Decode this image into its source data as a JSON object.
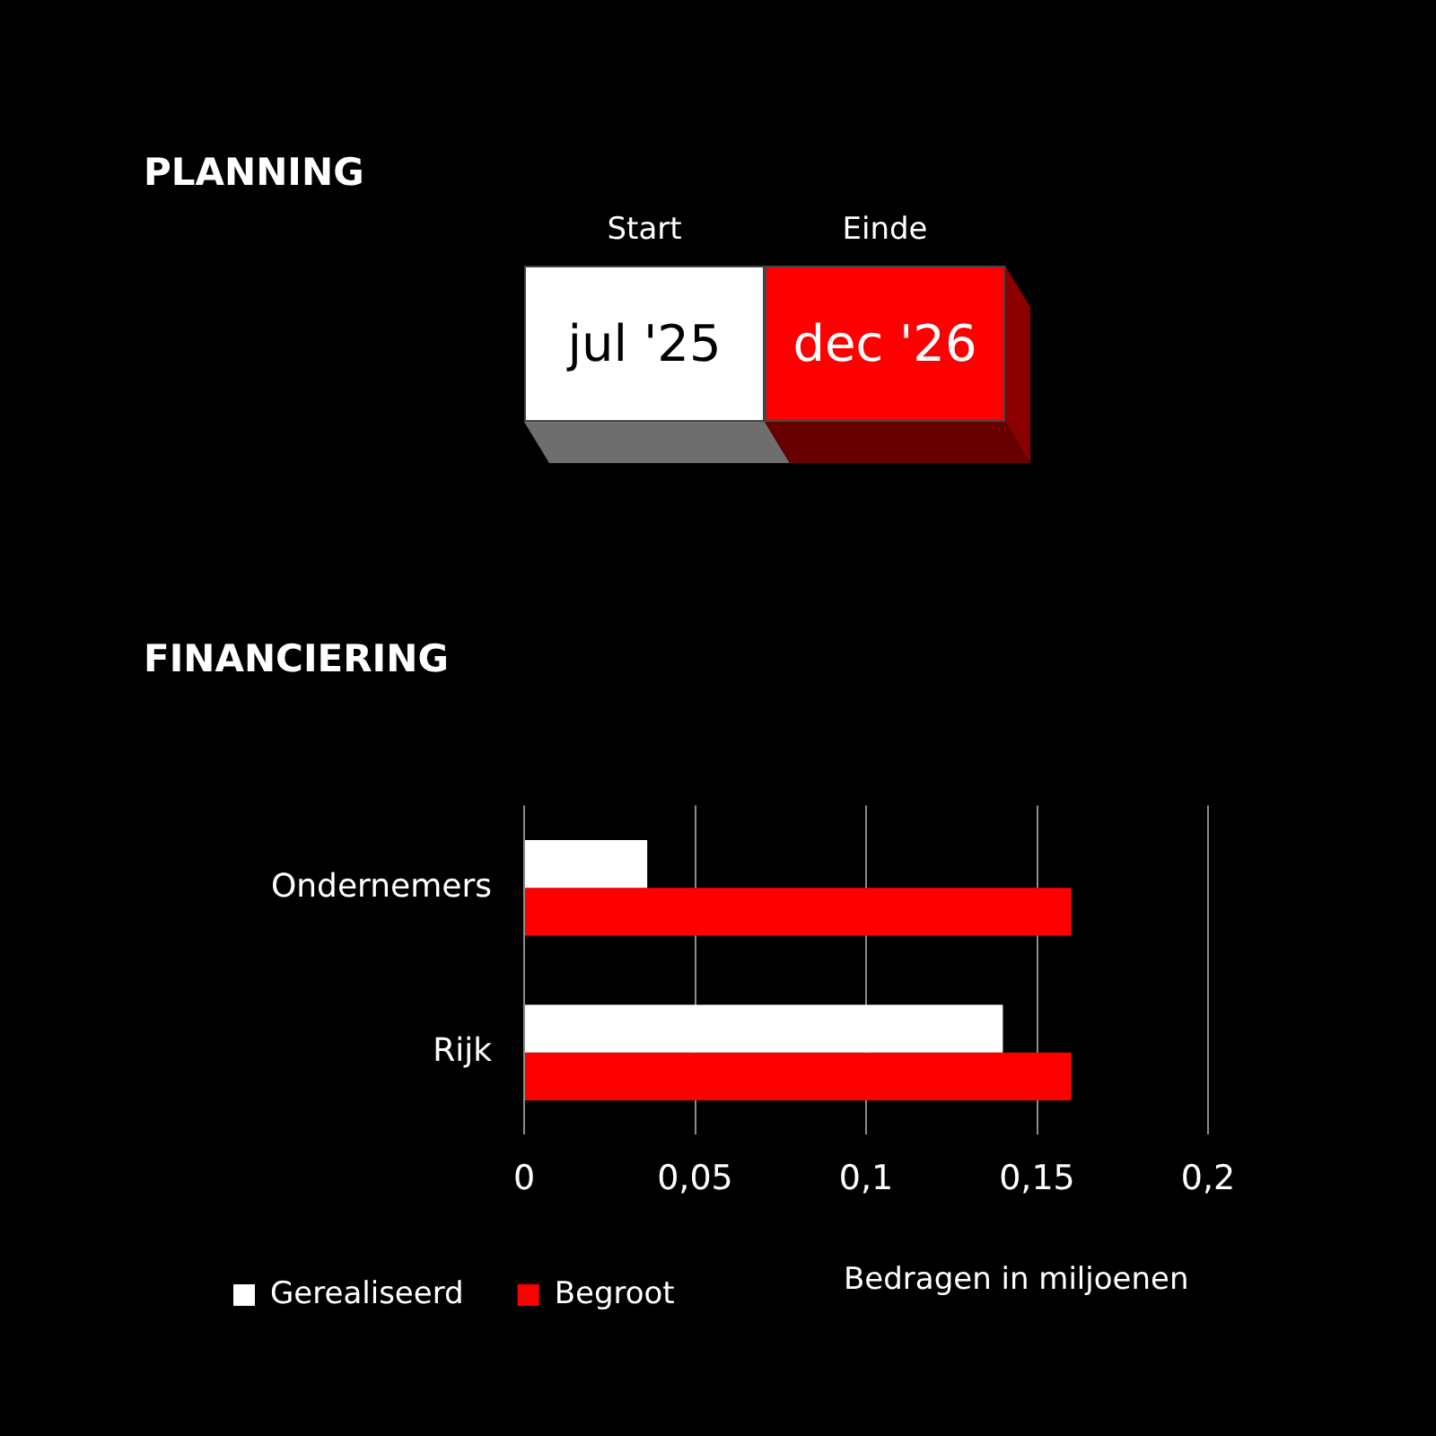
{
  "chart_data": [
    {
      "type": "other",
      "title": "PLANNING",
      "categories": [
        "Start",
        "Einde"
      ],
      "value_labels": [
        "jul '25",
        "dec '26"
      ],
      "colors": [
        "#ffffff",
        "#ff0000"
      ]
    },
    {
      "type": "bar",
      "orientation": "horizontal",
      "title": "FINANCIERING",
      "categories": [
        "Ondernemers",
        "Rijk"
      ],
      "series": [
        {
          "name": "Gerealiseerd",
          "color": "#ffffff",
          "values": [
            0.036,
            0.14
          ]
        },
        {
          "name": "Begroot",
          "color": "#ff0000",
          "values": [
            0.16,
            0.16
          ]
        }
      ],
      "xlim": [
        0,
        0.2
      ],
      "xticks": [
        0,
        {
          "value": 0.05,
          "label": "0,05"
        },
        {
          "value": 0.1,
          "label": "0,1"
        },
        {
          "value": 0.15,
          "label": "0,15"
        },
        {
          "value": 0.2,
          "label": "0,2"
        }
      ],
      "grid": "x",
      "legend": "bottom",
      "annotations": [
        "Bedragen in miljoenen"
      ]
    }
  ]
}
